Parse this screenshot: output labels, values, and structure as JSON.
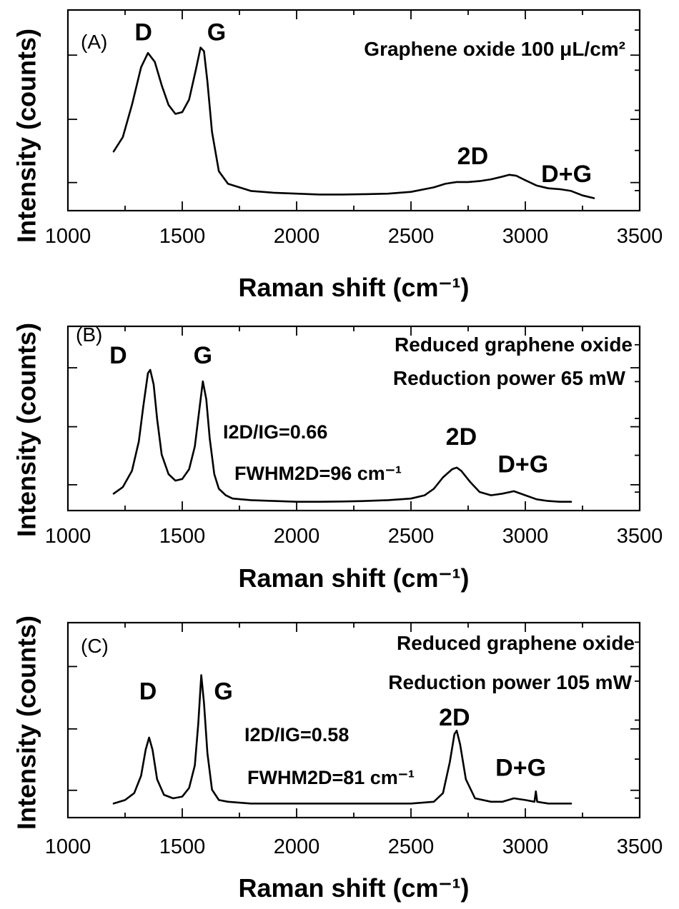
{
  "chart_data": [
    {
      "type": "line",
      "panel_label": "(A)",
      "xlabel": "Raman shift (cm⁻¹)",
      "ylabel": "Intensity (counts)",
      "xlim": [
        1000,
        3500
      ],
      "ylim": [
        0,
        1.0
      ],
      "x_ticks": [
        "1000",
        "1500",
        "2000",
        "2500",
        "3000",
        "3500"
      ],
      "description_lines": [
        "Graphene oxide 100 μL/cm²"
      ],
      "annotations": [],
      "peak_labels": [
        {
          "text": "D",
          "x": 1330,
          "y": 0.91
        },
        {
          "text": "G",
          "x": 1650,
          "y": 0.91
        },
        {
          "text": "2D",
          "x": 2770,
          "y": 0.22
        },
        {
          "text": "D+G",
          "x": 3180,
          "y": 0.12
        }
      ],
      "series": [
        {
          "name": "Graphene oxide",
          "x": [
            1200,
            1240,
            1280,
            1320,
            1350,
            1380,
            1410,
            1440,
            1470,
            1500,
            1530,
            1560,
            1580,
            1595,
            1610,
            1630,
            1660,
            1700,
            1750,
            1800,
            1900,
            2000,
            2100,
            2200,
            2300,
            2400,
            2500,
            2600,
            2650,
            2700,
            2750,
            2800,
            2850,
            2900,
            2930,
            2960,
            3000,
            3050,
            3100,
            3150,
            3200,
            3250,
            3300
          ],
          "values": [
            0.29,
            0.37,
            0.55,
            0.76,
            0.84,
            0.79,
            0.66,
            0.55,
            0.5,
            0.51,
            0.58,
            0.75,
            0.87,
            0.85,
            0.68,
            0.4,
            0.18,
            0.11,
            0.09,
            0.07,
            0.06,
            0.055,
            0.05,
            0.05,
            0.052,
            0.055,
            0.065,
            0.09,
            0.11,
            0.12,
            0.12,
            0.125,
            0.135,
            0.15,
            0.16,
            0.155,
            0.13,
            0.1,
            0.085,
            0.08,
            0.07,
            0.045,
            0.03
          ]
        }
      ]
    },
    {
      "type": "line",
      "panel_label": "(B)",
      "xlabel": "Raman shift (cm⁻¹)",
      "ylabel": "Intensity (counts)",
      "xlim": [
        1000,
        3500
      ],
      "ylim": [
        0,
        1.0
      ],
      "x_ticks": [
        "1000",
        "1500",
        "2000",
        "2500",
        "3000",
        "3500"
      ],
      "description_lines": [
        "Reduced graphene oxide",
        "Reduction power 65 mW"
      ],
      "annotations": [
        "I2D/IG=0.66",
        "FWHM2D=96 cm⁻¹"
      ],
      "peak_labels": [
        {
          "text": "D",
          "x": 1220,
          "y": 0.86
        },
        {
          "text": "G",
          "x": 1590,
          "y": 0.86
        },
        {
          "text": "2D",
          "x": 2720,
          "y": 0.36
        },
        {
          "text": "D+G",
          "x": 2990,
          "y": 0.19
        }
      ],
      "series": [
        {
          "name": "Reduced graphene oxide 65 mW",
          "x": [
            1200,
            1240,
            1280,
            1310,
            1330,
            1350,
            1360,
            1375,
            1390,
            1410,
            1440,
            1470,
            1500,
            1530,
            1555,
            1575,
            1590,
            1605,
            1620,
            1640,
            1660,
            1690,
            1720,
            1800,
            1900,
            2000,
            2100,
            2200,
            2300,
            2400,
            2500,
            2560,
            2600,
            2640,
            2680,
            2700,
            2720,
            2760,
            2800,
            2850,
            2900,
            2950,
            3000,
            3050,
            3100,
            3150,
            3200
          ],
          "values": [
            0.06,
            0.1,
            0.2,
            0.38,
            0.6,
            0.8,
            0.82,
            0.73,
            0.52,
            0.3,
            0.18,
            0.14,
            0.15,
            0.21,
            0.35,
            0.58,
            0.75,
            0.64,
            0.4,
            0.18,
            0.09,
            0.05,
            0.03,
            0.02,
            0.015,
            0.01,
            0.01,
            0.012,
            0.015,
            0.02,
            0.03,
            0.05,
            0.09,
            0.16,
            0.21,
            0.22,
            0.2,
            0.13,
            0.07,
            0.05,
            0.06,
            0.075,
            0.05,
            0.025,
            0.015,
            0.01,
            0.01
          ]
        }
      ]
    },
    {
      "type": "line",
      "panel_label": "(C)",
      "xlabel": "Raman shift (cm⁻¹)",
      "ylabel": "Intensity (counts)",
      "xlim": [
        1000,
        3500
      ],
      "ylim": [
        0,
        1.0
      ],
      "x_ticks": [
        "1000",
        "1500",
        "2000",
        "2500",
        "3000",
        "3500"
      ],
      "description_lines": [
        "Reduced graphene oxide",
        "Reduction power 105 mW"
      ],
      "annotations": [
        "I2D/IG=0.58",
        "FWHM2D=81 cm⁻¹"
      ],
      "peak_labels": [
        {
          "text": "D",
          "x": 1350,
          "y": 0.64
        },
        {
          "text": "G",
          "x": 1680,
          "y": 0.64
        },
        {
          "text": "2D",
          "x": 2690,
          "y": 0.49
        },
        {
          "text": "D+G",
          "x": 2980,
          "y": 0.2
        }
      ],
      "series": [
        {
          "name": "Reduced graphene oxide 105 mW",
          "x": [
            1200,
            1250,
            1290,
            1320,
            1340,
            1355,
            1370,
            1390,
            1420,
            1460,
            1500,
            1530,
            1555,
            1570,
            1583,
            1595,
            1610,
            1630,
            1660,
            1700,
            1800,
            1900,
            2000,
            2100,
            2200,
            2300,
            2400,
            2500,
            2600,
            2640,
            2670,
            2690,
            2700,
            2715,
            2740,
            2780,
            2850,
            2900,
            2950,
            3000,
            3040,
            3046,
            3052,
            3100,
            3150,
            3200
          ],
          "values": [
            0.04,
            0.06,
            0.1,
            0.2,
            0.35,
            0.42,
            0.35,
            0.18,
            0.09,
            0.07,
            0.08,
            0.13,
            0.26,
            0.5,
            0.78,
            0.62,
            0.33,
            0.12,
            0.06,
            0.05,
            0.04,
            0.04,
            0.04,
            0.04,
            0.04,
            0.04,
            0.04,
            0.04,
            0.05,
            0.1,
            0.28,
            0.44,
            0.46,
            0.38,
            0.18,
            0.07,
            0.05,
            0.05,
            0.07,
            0.06,
            0.05,
            0.11,
            0.05,
            0.04,
            0.04,
            0.04
          ]
        }
      ]
    }
  ]
}
